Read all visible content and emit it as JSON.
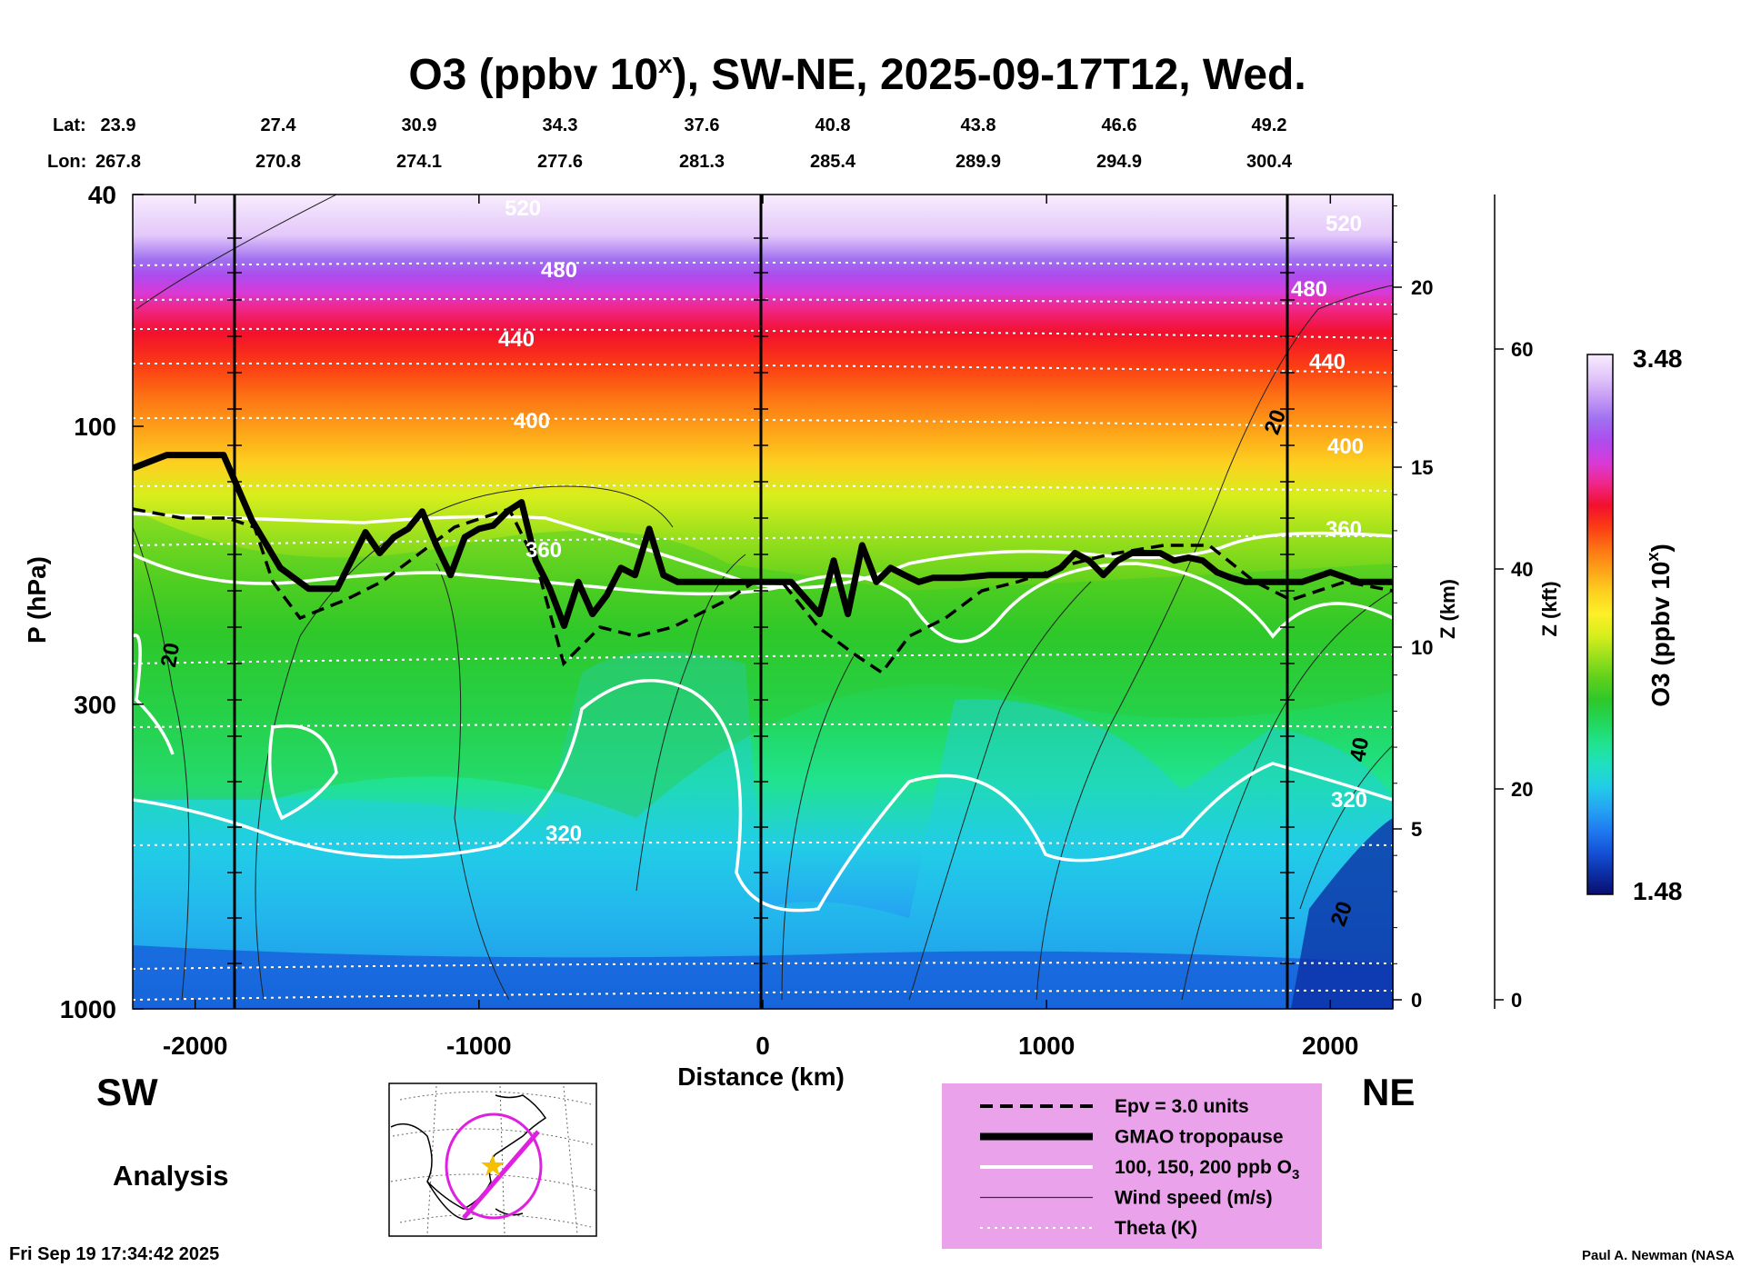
{
  "title": "O3 (ppbv 10",
  "title_sup": "x",
  "title_rest": "), SW-NE, 2025-09-17T12, Wed.",
  "lat_label": "Lat:",
  "lon_label": "Lon:",
  "lat_values": [
    "23.9",
    "27.4",
    "30.9",
    "34.3",
    "37.6",
    "40.8",
    "43.8",
    "46.6",
    "49.2"
  ],
  "lon_values": [
    "267.8",
    "270.8",
    "274.1",
    "277.6",
    "281.3",
    "285.4",
    "289.9",
    "294.9",
    "300.4"
  ],
  "direction_left": "SW",
  "direction_right": "NE",
  "analysis_label": "Analysis",
  "timestamp": "Fri Sep 19 17:34:42 2025",
  "credit": "Paul A. Newman (NASA",
  "colorbar": {
    "label": "O3 (ppbv 10",
    "label_sup": "x",
    "label_close": ")",
    "max": "3.48",
    "min": "1.48",
    "colors": [
      "#0a0f6e",
      "#0c2fa6",
      "#1554d8",
      "#1f7cf0",
      "#25a6f2",
      "#22cde6",
      "#1fe0c0",
      "#20e38e",
      "#22d65a",
      "#2ec82a",
      "#5ed01c",
      "#9ae01c",
      "#d8ee1c",
      "#fdf028",
      "#fdd020",
      "#fda318",
      "#fd7414",
      "#fb3c14",
      "#f2102c",
      "#f02688",
      "#d83ad8",
      "#ad4cee",
      "#a070f0",
      "#c59cf5",
      "#e3c8fa",
      "#f8ecfd"
    ]
  },
  "legend": [
    {
      "label": "Epv = 3.0 units",
      "style": "dashed-black"
    },
    {
      "label": "GMAO tropopause",
      "style": "thick-black"
    },
    {
      "label": "100, 150, 200 ppb O",
      "sub": "3",
      "style": "white"
    },
    {
      "label": "Wind speed (m/s)",
      "style": "thin-black"
    },
    {
      "label": "Theta (K)",
      "style": "dotted-white"
    }
  ],
  "contour_labels": {
    "theta": [
      "520",
      "480",
      "440",
      "400",
      "360",
      "320",
      "520",
      "480",
      "440",
      "400",
      "360",
      "320"
    ],
    "wind": [
      "20",
      "20",
      "40",
      "20"
    ]
  },
  "chart_data": {
    "type": "heatmap",
    "xlabel": "Distance (km)",
    "ylabel": "P (hPa)",
    "y2label": "Z (km)",
    "y3label": "Z (kft)",
    "xlim": [
      -2220,
      2220
    ],
    "ylim_log_pressure": [
      1000,
      40
    ],
    "x_ticks": [
      -2000,
      -1000,
      0,
      1000,
      2000
    ],
    "x_tick_labels": [
      "-2000",
      "-1000",
      "0",
      "1000",
      "2000"
    ],
    "y_ticks": [
      1000,
      300,
      100,
      40
    ],
    "y_tick_labels": [
      "1000",
      "300",
      "100",
      "40"
    ],
    "z_km_ticks": [
      0,
      5,
      10,
      15,
      20
    ],
    "z_kft_ticks": [
      0,
      20,
      40,
      60
    ],
    "colorbar_range": [
      1.48,
      3.48
    ],
    "vertical_lines_km": [
      -1850,
      0,
      1850
    ],
    "tropopause_hpa": {
      "x": [
        -2220,
        -2100,
        -2000,
        -1900,
        -1800,
        -1700,
        -1600,
        -1500,
        -1450,
        -1400,
        -1350,
        -1300,
        -1250,
        -1200,
        -1150,
        -1100,
        -1050,
        -1000,
        -950,
        -900,
        -850,
        -800,
        -750,
        -700,
        -650,
        -600,
        -550,
        -500,
        -450,
        -400,
        -350,
        -300,
        -250,
        -200,
        -150,
        -100,
        -50,
        0,
        100,
        200,
        250,
        300,
        350,
        400,
        450,
        500,
        550,
        600,
        700,
        800,
        900,
        1000,
        1050,
        1100,
        1150,
        1200,
        1250,
        1300,
        1350,
        1400,
        1450,
        1500,
        1550,
        1600,
        1650,
        1700,
        1800,
        1900,
        2000,
        2100,
        2220
      ],
      "p": [
        118,
        112,
        112,
        112,
        145,
        175,
        190,
        190,
        170,
        152,
        165,
        155,
        150,
        140,
        160,
        180,
        155,
        150,
        148,
        140,
        135,
        170,
        190,
        220,
        185,
        210,
        195,
        175,
        180,
        150,
        180,
        185,
        185,
        185,
        185,
        185,
        185,
        185,
        185,
        210,
        170,
        210,
        160,
        185,
        175,
        180,
        185,
        182,
        182,
        180,
        180,
        180,
        175,
        165,
        170,
        180,
        170,
        165,
        165,
        165,
        170,
        168,
        170,
        178,
        182,
        185,
        185,
        185,
        178,
        185,
        185
      ]
    },
    "theta_levels_K": [
      320,
      360,
      400,
      440,
      480,
      520
    ],
    "wind_labels_ms": [
      20,
      20,
      40,
      20
    ]
  }
}
